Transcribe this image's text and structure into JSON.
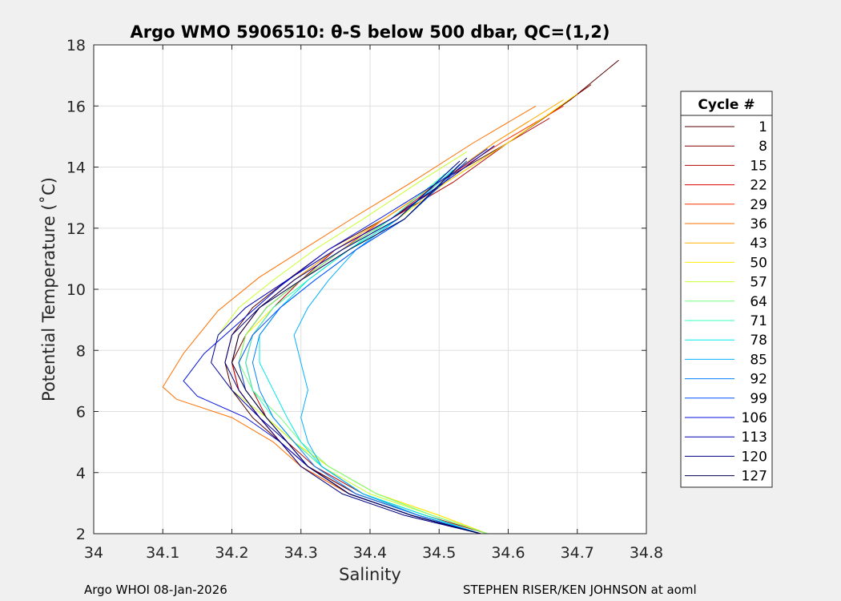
{
  "chart_data": {
    "type": "line",
    "title": "Argo WMO 5906510: θ-S below 500 dbar,  QC=(1,2)",
    "xlabel": "Salinity",
    "ylabel": "Potential Temperature (˚C)",
    "xlim": [
      34.0,
      34.8
    ],
    "ylim": [
      2,
      18
    ],
    "xticks": [
      "34",
      "34.1",
      "34.2",
      "34.3",
      "34.4",
      "34.5",
      "34.6",
      "34.7",
      "34.8"
    ],
    "yticks": [
      "2",
      "4",
      "6",
      "8",
      "10",
      "12",
      "14",
      "16",
      "18"
    ],
    "grid": true,
    "legend_position": "right",
    "legend_title": "Cycle #",
    "legend": [
      "1",
      "8",
      "15",
      "22",
      "29",
      "36",
      "43",
      "50",
      "57",
      "64",
      "71",
      "78",
      "85",
      "92",
      "99",
      "106",
      "113",
      "120",
      "127"
    ],
    "colors": [
      "#550000",
      "#800000",
      "#b30000",
      "#e00000",
      "#ff3300",
      "#ff7000",
      "#ffb000",
      "#ffee00",
      "#c8ff30",
      "#70ff80",
      "#30ffc0",
      "#00e8e8",
      "#00b0ff",
      "#0080ff",
      "#0050ff",
      "#0010e0",
      "#0000b0",
      "#000080",
      "#000050"
    ],
    "series": [
      {
        "name": "1",
        "x": [
          34.56,
          34.47,
          34.38,
          34.31,
          34.27,
          34.23,
          34.2,
          34.19,
          34.2,
          34.23,
          34.28,
          34.34,
          34.42,
          34.5,
          34.6,
          34.69,
          34.76
        ],
        "y": [
          2.0,
          2.6,
          3.3,
          4.2,
          5.0,
          5.8,
          6.7,
          7.6,
          8.5,
          9.4,
          10.3,
          11.3,
          12.3,
          13.5,
          14.8,
          16.2,
          17.5
        ]
      },
      {
        "name": "8",
        "x": [
          34.56,
          34.47,
          34.38,
          34.31,
          34.27,
          34.24,
          34.21,
          34.2,
          34.22,
          34.25,
          34.3,
          34.36,
          34.43,
          34.51,
          34.6,
          34.67,
          34.72
        ],
        "y": [
          2.0,
          2.6,
          3.3,
          4.2,
          5.0,
          5.8,
          6.7,
          7.6,
          8.5,
          9.4,
          10.3,
          11.3,
          12.3,
          13.5,
          14.8,
          15.9,
          16.7
        ]
      },
      {
        "name": "15",
        "x": [
          34.57,
          34.48,
          34.39,
          34.32,
          34.28,
          34.25,
          34.23,
          34.22,
          34.23,
          34.26,
          34.3,
          34.35,
          34.43,
          34.52,
          34.6,
          34.66
        ],
        "y": [
          2.0,
          2.6,
          3.3,
          4.2,
          5.0,
          5.8,
          6.7,
          7.6,
          8.5,
          9.4,
          10.3,
          11.3,
          12.3,
          13.5,
          14.8,
          15.6
        ]
      },
      {
        "name": "22",
        "x": [
          34.56,
          34.46,
          34.37,
          34.3,
          34.27,
          34.24,
          34.21,
          34.2,
          34.21,
          34.24,
          34.29,
          34.35,
          34.43,
          34.5,
          34.58,
          34.63
        ],
        "y": [
          2.0,
          2.6,
          3.3,
          4.2,
          5.0,
          5.8,
          6.7,
          7.6,
          8.5,
          9.4,
          10.3,
          11.3,
          12.3,
          13.5,
          14.8,
          15.5
        ]
      },
      {
        "name": "29",
        "x": [
          34.56,
          34.47,
          34.39,
          34.33,
          34.29,
          34.25,
          34.22,
          34.21,
          34.22,
          34.25,
          34.3,
          34.36,
          34.42,
          34.5,
          34.59,
          34.68
        ],
        "y": [
          2.0,
          2.6,
          3.3,
          4.2,
          5.0,
          5.8,
          6.7,
          7.6,
          8.5,
          9.4,
          10.3,
          11.3,
          12.3,
          13.5,
          14.8,
          16.0
        ]
      },
      {
        "name": "36",
        "x": [
          34.56,
          34.46,
          34.37,
          34.3,
          34.26,
          34.2,
          34.12,
          34.1,
          34.13,
          34.18,
          34.24,
          34.31,
          34.38,
          34.46,
          34.55,
          34.64
        ],
        "y": [
          2.0,
          2.6,
          3.3,
          4.2,
          5.0,
          5.8,
          6.4,
          6.8,
          7.9,
          9.3,
          10.4,
          11.4,
          12.4,
          13.5,
          14.8,
          16.0
        ]
      },
      {
        "name": "43",
        "x": [
          34.57,
          34.5,
          34.41,
          34.34,
          34.29,
          34.25,
          34.22,
          34.2,
          34.21,
          34.24,
          34.29,
          34.35,
          34.42,
          34.5,
          34.58,
          34.68
        ],
        "y": [
          2.0,
          2.6,
          3.3,
          4.2,
          5.0,
          5.8,
          6.7,
          7.6,
          8.5,
          9.4,
          10.3,
          11.3,
          12.3,
          13.5,
          14.8,
          16.2
        ]
      },
      {
        "name": "50",
        "x": [
          34.57,
          34.5,
          34.41,
          34.34,
          34.29,
          34.25,
          34.22,
          34.21,
          34.22,
          34.26,
          34.31,
          34.37,
          34.44,
          34.51,
          34.6,
          34.7
        ],
        "y": [
          2.0,
          2.6,
          3.3,
          4.2,
          5.0,
          5.8,
          6.7,
          7.6,
          8.5,
          9.4,
          10.3,
          11.3,
          12.3,
          13.5,
          14.8,
          16.4
        ]
      },
      {
        "name": "57",
        "x": [
          34.57,
          34.49,
          34.4,
          34.33,
          34.29,
          34.25,
          34.2,
          34.17,
          34.18,
          34.21,
          34.26,
          34.32,
          34.39,
          34.47,
          34.54
        ],
        "y": [
          2.0,
          2.6,
          3.3,
          4.2,
          5.0,
          5.8,
          6.7,
          7.6,
          8.5,
          9.4,
          10.3,
          11.3,
          12.3,
          13.5,
          14.5
        ]
      },
      {
        "name": "64",
        "x": [
          34.57,
          34.49,
          34.41,
          34.34,
          34.3,
          34.27,
          34.23,
          34.21,
          34.22,
          34.25,
          34.3,
          34.36,
          34.43,
          34.51
        ],
        "y": [
          2.0,
          2.6,
          3.3,
          4.2,
          5.0,
          5.8,
          6.7,
          7.6,
          8.5,
          9.4,
          10.3,
          11.3,
          12.3,
          13.8
        ]
      },
      {
        "name": "71",
        "x": [
          34.56,
          34.48,
          34.39,
          34.33,
          34.29,
          34.26,
          34.23,
          34.22,
          34.23,
          34.26,
          34.31,
          34.37,
          34.43,
          34.51
        ],
        "y": [
          2.0,
          2.6,
          3.3,
          4.2,
          5.0,
          5.8,
          6.7,
          7.6,
          8.5,
          9.4,
          10.3,
          11.3,
          12.3,
          13.8
        ]
      },
      {
        "name": "78",
        "x": [
          34.56,
          34.48,
          34.39,
          34.33,
          34.3,
          34.28,
          34.26,
          34.24,
          34.24,
          34.27,
          34.31,
          34.37,
          34.44,
          34.52
        ],
        "y": [
          2.0,
          2.6,
          3.3,
          4.2,
          5.0,
          5.8,
          6.7,
          7.6,
          8.5,
          9.4,
          10.3,
          11.3,
          12.3,
          13.9
        ]
      },
      {
        "name": "85",
        "x": [
          34.56,
          34.47,
          34.39,
          34.33,
          34.31,
          34.3,
          34.31,
          34.3,
          34.29,
          34.31,
          34.34,
          34.38,
          34.44,
          34.52
        ],
        "y": [
          2.0,
          2.6,
          3.3,
          4.2,
          5.0,
          5.8,
          6.7,
          7.6,
          8.5,
          9.4,
          10.3,
          11.3,
          12.3,
          14.0
        ]
      },
      {
        "name": "92",
        "x": [
          34.56,
          34.47,
          34.38,
          34.32,
          34.29,
          34.26,
          34.24,
          34.23,
          34.24,
          34.27,
          34.32,
          34.38,
          34.45,
          34.53
        ],
        "y": [
          2.0,
          2.6,
          3.3,
          4.2,
          5.0,
          5.8,
          6.7,
          7.6,
          8.5,
          9.4,
          10.3,
          11.3,
          12.3,
          14.1
        ]
      },
      {
        "name": "99",
        "x": [
          34.56,
          34.46,
          34.37,
          34.31,
          34.28,
          34.25,
          34.22,
          34.21,
          34.23,
          34.27,
          34.32,
          34.38,
          34.45,
          34.54
        ],
        "y": [
          2.0,
          2.6,
          3.3,
          4.2,
          5.0,
          5.8,
          6.7,
          7.6,
          8.5,
          9.4,
          10.3,
          11.3,
          12.3,
          14.2
        ]
      },
      {
        "name": "106",
        "x": [
          34.56,
          34.46,
          34.37,
          34.31,
          34.27,
          34.22,
          34.15,
          34.13,
          34.16,
          34.21,
          34.27,
          34.34,
          34.42,
          34.52,
          34.57
        ],
        "y": [
          2.0,
          2.6,
          3.3,
          4.2,
          5.0,
          5.8,
          6.5,
          7.0,
          7.9,
          8.9,
          10.1,
          11.3,
          12.4,
          13.8,
          14.6
        ]
      },
      {
        "name": "113",
        "x": [
          34.56,
          34.46,
          34.37,
          34.31,
          34.28,
          34.24,
          34.2,
          34.17,
          34.18,
          34.22,
          34.28,
          34.35,
          34.43,
          34.52,
          34.58
        ],
        "y": [
          2.0,
          2.6,
          3.3,
          4.2,
          5.0,
          5.8,
          6.7,
          7.6,
          8.5,
          9.4,
          10.3,
          11.3,
          12.3,
          13.7,
          14.7
        ]
      },
      {
        "name": "120",
        "x": [
          34.56,
          34.45,
          34.36,
          34.3,
          34.27,
          34.24,
          34.21,
          34.19,
          34.2,
          34.24,
          34.29,
          34.36,
          34.44,
          34.53
        ],
        "y": [
          2.0,
          2.6,
          3.3,
          4.2,
          5.0,
          5.8,
          6.7,
          7.6,
          8.5,
          9.4,
          10.3,
          11.3,
          12.3,
          14.2
        ]
      },
      {
        "name": "127",
        "x": [
          34.56,
          34.46,
          34.37,
          34.31,
          34.28,
          34.25,
          34.22,
          34.2,
          34.21,
          34.24,
          34.3,
          34.37,
          34.45,
          34.54
        ],
        "y": [
          2.0,
          2.6,
          3.3,
          4.2,
          5.0,
          5.8,
          6.7,
          7.6,
          8.5,
          9.4,
          10.3,
          11.3,
          12.3,
          14.3
        ]
      }
    ]
  },
  "footer": {
    "left": "Argo WHOI 08-Jan-2026",
    "right": "STEPHEN RISER/KEN JOHNSON at aoml"
  }
}
